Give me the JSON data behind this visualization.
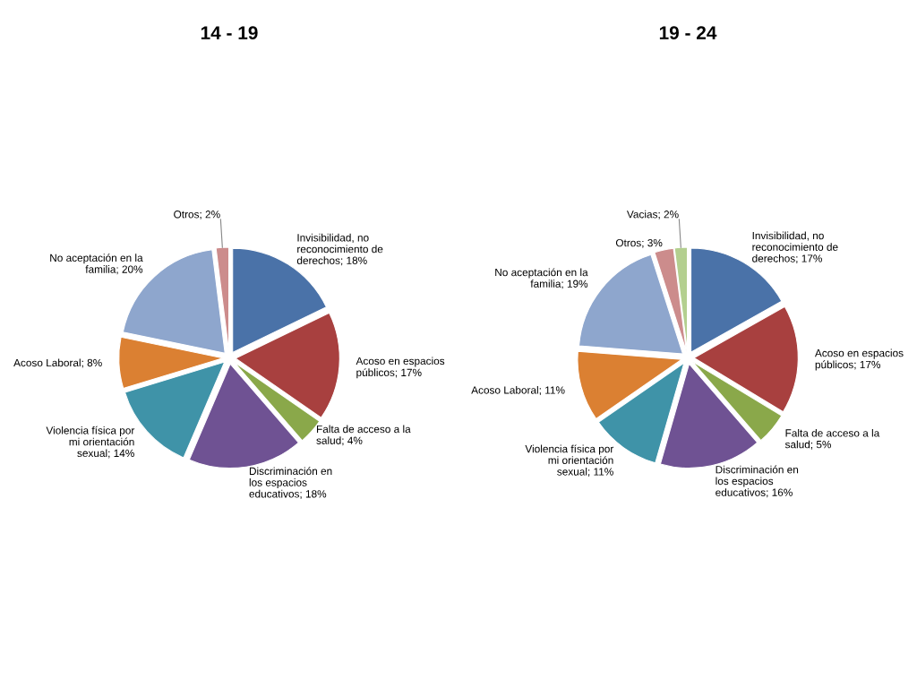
{
  "chart_data": [
    {
      "type": "pie",
      "title": "14 - 19",
      "categories": [
        "Invisibilidad, no reconocimiento de derechos",
        "Acoso en espacios públicos",
        "Falta de acceso a la salud",
        "Discriminación en los espacios educativos",
        "Violencia física por mi orientación sexual",
        "Acoso Laboral",
        "No aceptación en la familia",
        "Otros"
      ],
      "values": [
        18,
        17,
        4,
        18,
        14,
        8,
        20,
        2
      ],
      "value_labels": [
        "18%",
        "17%",
        "4%",
        "18%",
        "14%",
        "8%",
        "20%",
        "2%"
      ],
      "colors": [
        "#4a72a8",
        "#a8403f",
        "#8aa84a",
        "#6f5293",
        "#3f93a8",
        "#db8032",
        "#8ea6cd",
        "#cc8c8c"
      ]
    },
    {
      "type": "pie",
      "title": "19 - 24",
      "categories": [
        "Invisibilidad, no reconocimiento de derechos",
        "Acoso en espacios públicos",
        "Falta de acceso a la salud",
        "Discriminación en los espacios educativos",
        "Violencia física por mi orientación sexual",
        "Acoso Laboral",
        "No aceptación en la familia",
        "Otros",
        "Vacias"
      ],
      "values": [
        17,
        17,
        5,
        16,
        11,
        11,
        19,
        3,
        2
      ],
      "value_labels": [
        "17%",
        "17%",
        "5%",
        "16%",
        "11%",
        "11%",
        "19%",
        "3%",
        "2%"
      ],
      "colors": [
        "#4a72a8",
        "#a8403f",
        "#8aa84a",
        "#6f5293",
        "#3f93a8",
        "#db8032",
        "#8ea6cd",
        "#cc8c8c",
        "#b3cf8f"
      ]
    }
  ]
}
